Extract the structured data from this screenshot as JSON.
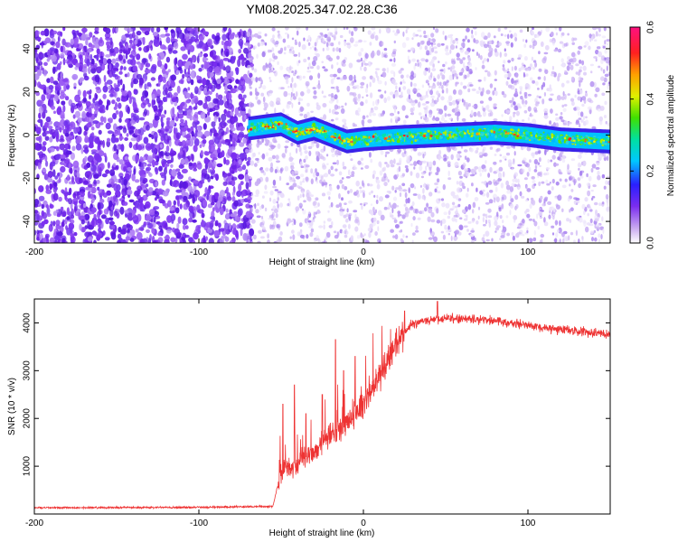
{
  "title": "YM08.2025.347.02.28.C36",
  "chart_data": [
    {
      "type": "heatmap",
      "xlabel": "Height of straight line (km)",
      "ylabel": "Frequency (Hz)",
      "xlim": [
        -200,
        150
      ],
      "ylim": [
        -50,
        50
      ],
      "xticks": [
        -200,
        -100,
        0,
        100
      ],
      "yticks": [
        -40,
        -20,
        0,
        20,
        40
      ],
      "colorbar": {
        "label": "Normalized spectral amplitude",
        "range": [
          0,
          0.6
        ],
        "ticks": [
          0.0,
          0.2,
          0.4,
          0.6
        ],
        "tick_labels": [
          "0.0",
          "0.2",
          "0.4",
          "0.6"
        ]
      },
      "signal_track": [
        {
          "x": -70,
          "y": 3
        },
        {
          "x": -60,
          "y": 4
        },
        {
          "x": -50,
          "y": 5
        },
        {
          "x": -40,
          "y": 1
        },
        {
          "x": -30,
          "y": 3
        },
        {
          "x": -20,
          "y": 0
        },
        {
          "x": -10,
          "y": -3
        },
        {
          "x": 0,
          "y": -2
        },
        {
          "x": 20,
          "y": -1
        },
        {
          "x": 50,
          "y": 0
        },
        {
          "x": 80,
          "y": 1
        },
        {
          "x": 100,
          "y": 0
        },
        {
          "x": 120,
          "y": -2
        },
        {
          "x": 150,
          "y": -3
        }
      ],
      "noise_regions": [
        {
          "from": -200,
          "to": -70,
          "level": "high"
        },
        {
          "from": -70,
          "to": 150,
          "level": "low"
        }
      ]
    },
    {
      "type": "line",
      "xlabel": "Height of straight line (km)",
      "ylabel": "SNR (10 * v/v)",
      "xlim": [
        -200,
        150
      ],
      "ylim": [
        0,
        4500
      ],
      "xticks": [
        -200,
        -100,
        0,
        100
      ],
      "yticks": [
        1000,
        2000,
        3000,
        4000
      ],
      "series_color": "#ee3333",
      "envelope": [
        {
          "x": -200,
          "y": 130
        },
        {
          "x": -100,
          "y": 140
        },
        {
          "x": -55,
          "y": 160
        },
        {
          "x": -50,
          "y": 900
        },
        {
          "x": -40,
          "y": 1000
        },
        {
          "x": -30,
          "y": 1300
        },
        {
          "x": -20,
          "y": 1600
        },
        {
          "x": -10,
          "y": 1900
        },
        {
          "x": 0,
          "y": 2300
        },
        {
          "x": 10,
          "y": 2900
        },
        {
          "x": 20,
          "y": 3600
        },
        {
          "x": 30,
          "y": 4000
        },
        {
          "x": 50,
          "y": 4100
        },
        {
          "x": 80,
          "y": 4050
        },
        {
          "x": 110,
          "y": 3900
        },
        {
          "x": 150,
          "y": 3750
        }
      ],
      "spikes": [
        {
          "x": -49,
          "y": 2300
        },
        {
          "x": -42,
          "y": 2700
        },
        {
          "x": -35,
          "y": 2100
        },
        {
          "x": -25,
          "y": 2500
        },
        {
          "x": -17,
          "y": 3650
        },
        {
          "x": -12,
          "y": 3000
        },
        {
          "x": -5,
          "y": 3300
        },
        {
          "x": 25,
          "y": 4250
        },
        {
          "x": 45,
          "y": 4450
        }
      ]
    }
  ]
}
